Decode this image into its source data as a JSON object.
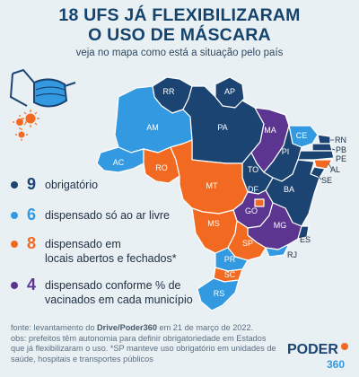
{
  "header": {
    "title_line1": "18 UFS JÁ FLEXIBILIZARAM",
    "title_line2": "O USO DE MÁSCARA",
    "subtitle": "veja no mapa como está a situação pelo país"
  },
  "colors": {
    "obrigatorio": "#1b4472",
    "ar_livre": "#3399e0",
    "abertos_fechados": "#f26a21",
    "vacinados": "#5b3590"
  },
  "legend": [
    {
      "count": "9",
      "line1": "obrigatório",
      "line2": "",
      "color": "#1b4472"
    },
    {
      "count": "6",
      "line1": "dispensado só ao ar livre",
      "line2": "",
      "color": "#3399e0"
    },
    {
      "count": "8",
      "line1": "dispensado em",
      "line2": "locais abertos e fechados*",
      "color": "#f26a21"
    },
    {
      "count": "4",
      "line1": "dispensado conforme % de",
      "line2": "vacinados em cada município",
      "color": "#5b3590"
    }
  ],
  "states": {
    "RR": "RR",
    "AP": "AP",
    "AM": "AM",
    "PA": "PA",
    "MA": "MA",
    "CE": "CE",
    "RN": "RN",
    "PB": "PB",
    "PE": "PE",
    "PI": "PI",
    "AL": "AL",
    "SE": "SE",
    "AC": "AC",
    "RO": "RO",
    "TO": "TO",
    "BA": "BA",
    "MT": "MT",
    "DF": "DF",
    "GO": "GO",
    "MG": "MG",
    "ES": "ES",
    "MS": "MS",
    "SP": "SP",
    "RJ": "RJ",
    "PR": "PR",
    "SC": "SC",
    "RS": "RS"
  },
  "footnotes": {
    "source_prefix": "fonte: levantamento do ",
    "source_bold": "Drive/Poder360",
    "source_suffix": " em 21 de março de 2022.",
    "obs": "obs: prefeitos têm autonomia para definir obrigatoriedade em Estados que já flexibilizaram o uso. *SP manteve uso obrigatório em unidades de saúde, hospitais e transportes públicos"
  },
  "logo": {
    "name": "PODER",
    "number": "360"
  }
}
